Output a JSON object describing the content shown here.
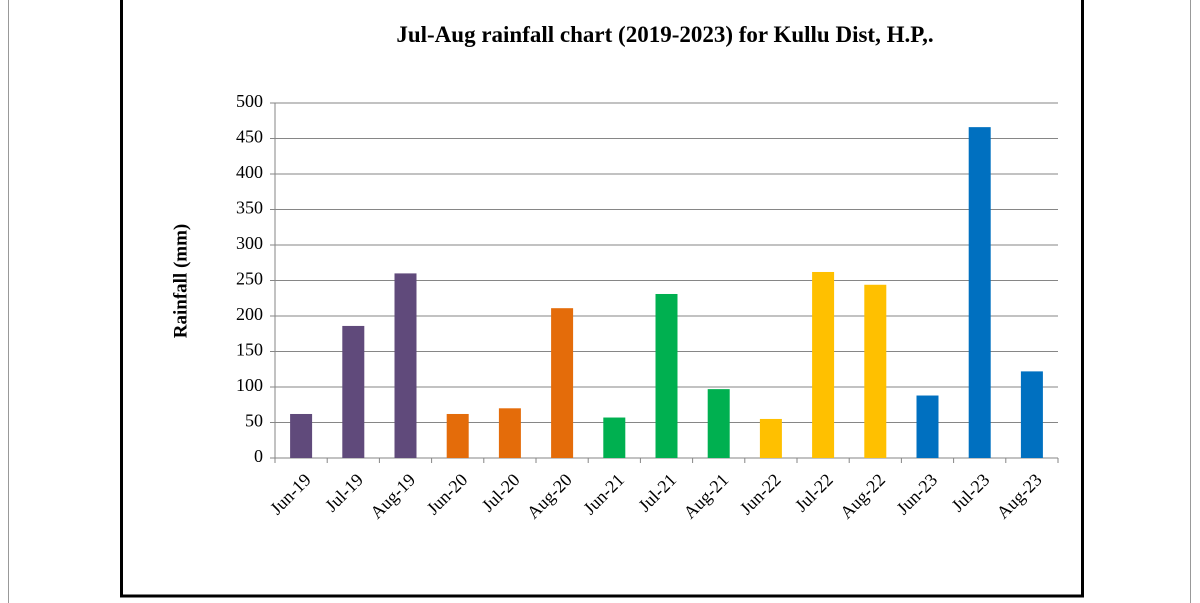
{
  "chart_data": {
    "type": "bar",
    "title": "Jul-Aug rainfall chart (2019-2023) for Kullu Dist, H.P,.",
    "y_label": "Rainfall (mm)",
    "categories": [
      "Jun-19",
      "Jul-19",
      "Aug-19",
      "Jun-20",
      "Jul-20",
      "Aug-20",
      "Jun-21",
      "Jul-21",
      "Aug-21",
      "Jun-22",
      "Jul-22",
      "Aug-22",
      "Jun-23",
      "Jul-23",
      "Aug-23"
    ],
    "values": [
      62,
      186,
      260,
      62,
      70,
      211,
      57,
      231,
      97,
      55,
      262,
      244,
      88,
      466,
      122
    ],
    "colors": [
      "#604a7b",
      "#604a7b",
      "#604a7b",
      "#e46c0a",
      "#e46c0a",
      "#e46c0a",
      "#00b050",
      "#00b050",
      "#00b050",
      "#ffc000",
      "#ffc000",
      "#ffc000",
      "#0070c0",
      "#0070c0",
      "#0070c0"
    ],
    "ylim": [
      0,
      500
    ],
    "yticks": [
      0,
      50,
      100,
      150,
      200,
      250,
      300,
      350,
      400,
      450,
      500
    ],
    "grid": true
  }
}
